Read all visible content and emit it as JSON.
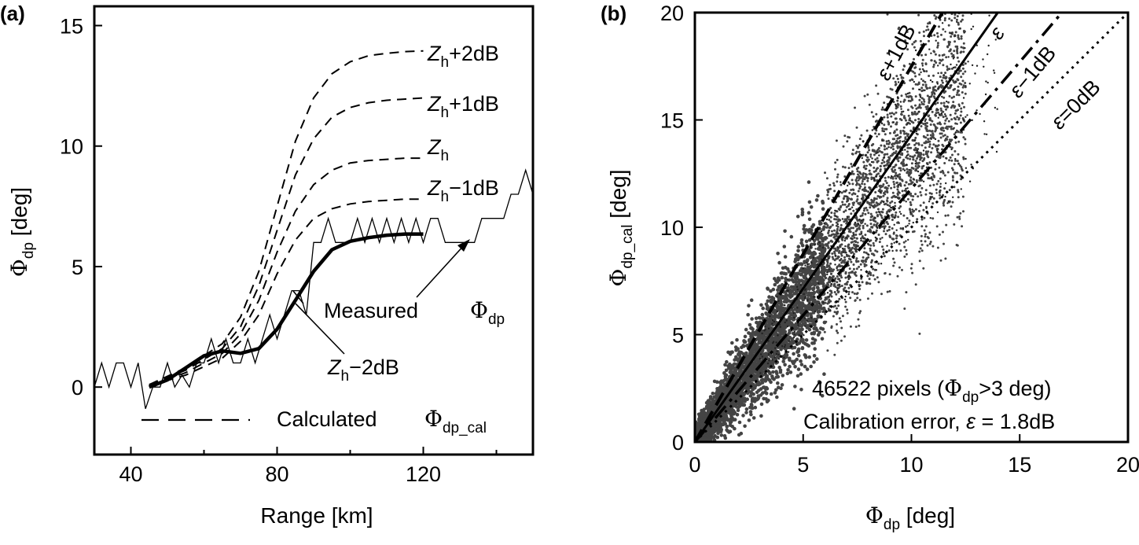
{
  "chart_data": [
    {
      "panel_label": "(a)",
      "type": "line",
      "xlabel": "Range [km]",
      "ylabel": {
        "main": "Φ",
        "sub": "dp",
        "unit": "[deg]"
      },
      "xlim": [
        30,
        150
      ],
      "ylim": [
        -2.8,
        15.8
      ],
      "xticks": [
        40,
        80,
        120
      ],
      "yticks": [
        0,
        5,
        10,
        15
      ],
      "series": [
        {
          "name": "Measured",
          "style": "thin-solid",
          "x": [
            30,
            32,
            34,
            36,
            38,
            40,
            42,
            44,
            46,
            48,
            50,
            52,
            54,
            56,
            58,
            60,
            62,
            64,
            66,
            68,
            70,
            72,
            74,
            76,
            78,
            80,
            82,
            84,
            86,
            88,
            90,
            92,
            94,
            96,
            98,
            100,
            102,
            104,
            106,
            108,
            110,
            112,
            114,
            116,
            118,
            120,
            122,
            124,
            126,
            128,
            130,
            132,
            134,
            136,
            138,
            140,
            142,
            144,
            146,
            148,
            150
          ],
          "y": [
            0,
            1,
            0,
            1,
            1,
            0,
            1,
            -0.9,
            0,
            0,
            1,
            0,
            0.5,
            0,
            1,
            1,
            2,
            1,
            2,
            1,
            1,
            2,
            1,
            2,
            3,
            2,
            3,
            4,
            4,
            3,
            6,
            6,
            7,
            6,
            6,
            6,
            7,
            6,
            7,
            6,
            7,
            6,
            7,
            6,
            7,
            6,
            7,
            7,
            6,
            6,
            6,
            6,
            6,
            7,
            7,
            7,
            7,
            8,
            8,
            9,
            8
          ]
        },
        {
          "name": "Z_h+2dB",
          "style": "dashed",
          "x": [
            45,
            55,
            65,
            70,
            75,
            80,
            85,
            90,
            95,
            100,
            105,
            110,
            115,
            120
          ],
          "y": [
            0.1,
            0.8,
            1.8,
            2.9,
            4.8,
            7.5,
            10.2,
            12.0,
            13.0,
            13.5,
            13.75,
            13.85,
            13.92,
            13.95
          ]
        },
        {
          "name": "Z_h+1dB",
          "style": "dashed",
          "x": [
            45,
            55,
            65,
            70,
            75,
            80,
            85,
            90,
            95,
            100,
            105,
            110,
            115,
            120
          ],
          "y": [
            0.1,
            0.7,
            1.6,
            2.5,
            4.2,
            6.5,
            8.8,
            10.3,
            11.2,
            11.6,
            11.8,
            11.9,
            11.95,
            12.0
          ]
        },
        {
          "name": "Z_h",
          "style": "dashed",
          "x": [
            45,
            55,
            65,
            70,
            75,
            80,
            85,
            90,
            95,
            100,
            105,
            110,
            115,
            120
          ],
          "y": [
            0.05,
            0.6,
            1.4,
            2.2,
            3.6,
            5.6,
            7.3,
            8.4,
            9.0,
            9.3,
            9.4,
            9.45,
            9.5,
            9.5
          ]
        },
        {
          "name": "Z_h−1dB",
          "style": "dashed",
          "x": [
            45,
            55,
            65,
            70,
            75,
            80,
            85,
            90,
            95,
            100,
            105,
            110,
            115,
            120
          ],
          "y": [
            0.05,
            0.5,
            1.2,
            1.9,
            3.0,
            4.7,
            6.1,
            7.0,
            7.4,
            7.6,
            7.7,
            7.75,
            7.8,
            7.8
          ]
        },
        {
          "name": "Z_h−2dB",
          "style": "thick-solid",
          "x": [
            45,
            50,
            55,
            60,
            65,
            70,
            75,
            80,
            85,
            90,
            95,
            100,
            105,
            110,
            115,
            120
          ],
          "y": [
            0,
            0.3,
            0.8,
            1.3,
            1.5,
            1.4,
            1.6,
            2.4,
            3.6,
            4.8,
            5.7,
            6.05,
            6.2,
            6.3,
            6.35,
            6.35
          ]
        }
      ],
      "annotations": {
        "zh_plus2": {
          "sym": "Z",
          "sub": "h",
          "text": "+2dB"
        },
        "zh_plus1": {
          "sym": "Z",
          "sub": "h",
          "text": "+1dB"
        },
        "zh": {
          "sym": "Z",
          "sub": "h",
          "text": ""
        },
        "zh_minus1": {
          "sym": "Z",
          "sub": "h",
          "text": "−1dB"
        },
        "zh_minus2": {
          "sym": "Z",
          "sub": "h",
          "text": "−2dB"
        },
        "measured": "Measured",
        "phi_dp": {
          "sym": "Φ",
          "sub": "dp"
        },
        "calculated": "Calculated",
        "phi_dp_cal": {
          "sym": "Φ",
          "sub": "dp_cal"
        }
      }
    },
    {
      "panel_label": "(b)",
      "type": "scatter",
      "xlabel": {
        "main": "Φ",
        "sub": "dp",
        "unit": "[deg]"
      },
      "ylabel": {
        "main": "Φ",
        "sub": "dp_cal",
        "unit": "[deg]"
      },
      "xlim": [
        0,
        20
      ],
      "ylim": [
        0,
        20
      ],
      "xticks": [
        0,
        5,
        10,
        15,
        20
      ],
      "yticks": [
        0,
        5,
        10,
        15,
        20
      ],
      "reference_lines": [
        {
          "name": "ε+1dB",
          "style": "dashed-bold",
          "slope": 1.75
        },
        {
          "name": "ε",
          "style": "solid",
          "slope": 1.43
        },
        {
          "name": "ε−1dB",
          "style": "dash-dot",
          "slope": 1.18
        },
        {
          "name": "ε=0dB",
          "style": "dotted",
          "slope": 1.0
        }
      ],
      "line_labels": {
        "eps_plus1": {
          "sym": "ε",
          "text": "+1dB"
        },
        "eps": {
          "sym": "ε",
          "text": ""
        },
        "eps_minus1": {
          "sym": "ε",
          "text": "−1dB"
        },
        "eps_zero": {
          "sym": "ε",
          "text": "=0dB"
        }
      },
      "stats_line1": {
        "pre": "46522 pixels (",
        "sym": "Φ",
        "sub": "dp",
        "post": ">3 deg)"
      },
      "stats_line2": {
        "pre": "Calibration error, ",
        "sym": "ε",
        "post": " = 1.8dB"
      },
      "pixel_count": 46522,
      "calibration_error_db": 1.8,
      "cloud_color": "#444444"
    }
  ]
}
